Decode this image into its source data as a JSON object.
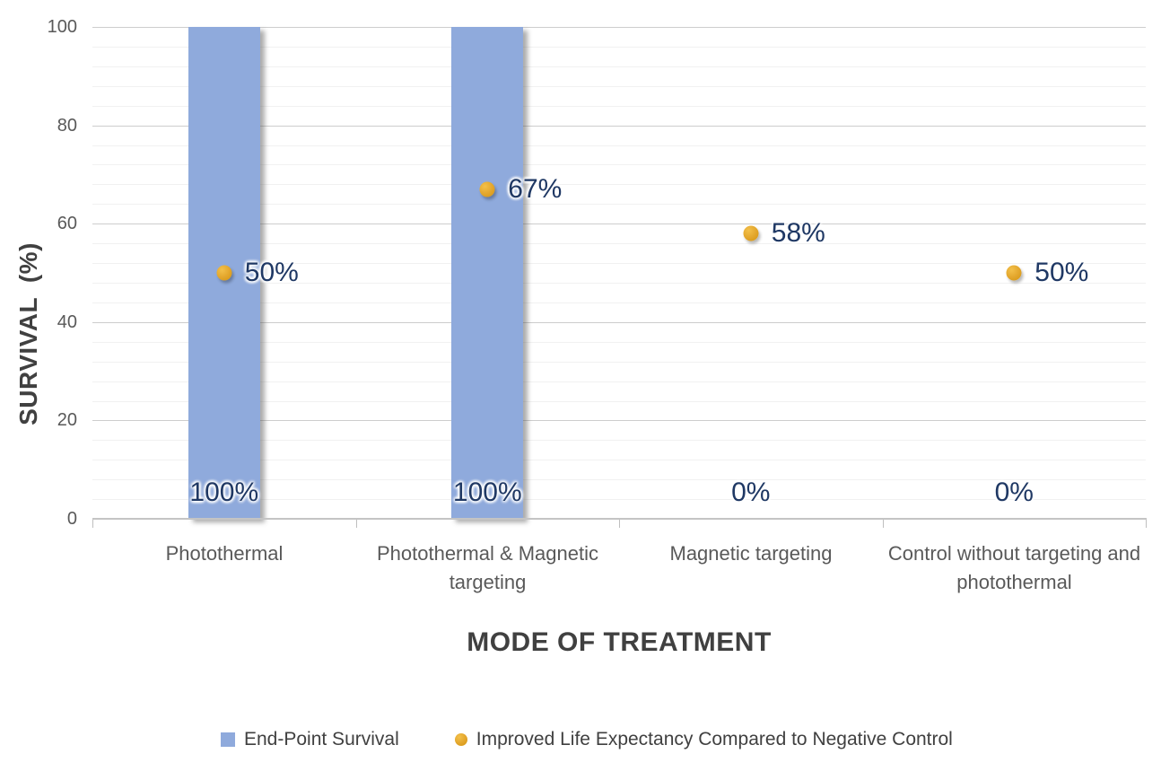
{
  "chart_data": {
    "type": "bar",
    "subtype": "bar-and-scatter-combo",
    "title": "",
    "xlabel": "MODE OF TREATMENT",
    "ylabel": "SURVIVAL (%)",
    "ylim": [
      0,
      100
    ],
    "y_major_unit": 20,
    "y_minor_unit": 4,
    "y_ticks": [
      0,
      20,
      40,
      60,
      80,
      100
    ],
    "grid": "major and minor horizontal gridlines on",
    "legend_position": "bottom",
    "categories": [
      "Photothermal",
      "Photothermal & Magnetic targeting",
      "Magnetic targeting",
      "Control without targeting and photothermal"
    ],
    "series": [
      {
        "name": "End-Point Survival",
        "type": "bar",
        "values": [
          100,
          100,
          0,
          0
        ],
        "data_labels": [
          "100%",
          "100%",
          "0%",
          "0%"
        ],
        "color": "#8FAADC"
      },
      {
        "name": "Improved Life Expectancy Compared to Negative Control",
        "type": "scatter",
        "values": [
          50,
          67,
          58,
          50
        ],
        "data_labels": [
          "50%",
          "67%",
          "58%",
          "50%"
        ],
        "color": "#E2A52B"
      }
    ],
    "colors": {
      "bar": "#8FAADC",
      "point": "#E2A52B",
      "point_gradient_light": "#F3C04A",
      "point_gradient_dark": "#D3940F",
      "data_label": "#1F3864",
      "axis_tick_text": "#595959",
      "category_text": "#595959",
      "axis_title_text": "#404040",
      "legend_text": "#404040",
      "gridline_major": "#CDCDCD",
      "gridline_minor": "#F1F1F1",
      "axis_line": "#C4C4C4",
      "tick_mark": "#BFBFBF",
      "background": "#FFFFFF"
    }
  }
}
